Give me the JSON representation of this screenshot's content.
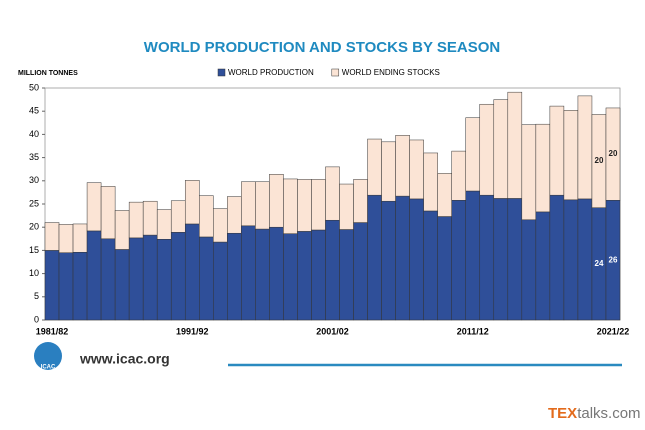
{
  "chart_data": {
    "type": "stacked-bar",
    "title": "WORLD PRODUCTION AND STOCKS BY SEASON",
    "y_label": "MILLION TONNES",
    "categories": [
      "1981/82",
      null,
      null,
      null,
      null,
      null,
      null,
      null,
      null,
      null,
      "1991/92",
      null,
      null,
      null,
      null,
      null,
      null,
      null,
      null,
      null,
      "2001/02",
      null,
      null,
      null,
      null,
      null,
      null,
      null,
      null,
      null,
      "2011/12",
      null,
      null,
      null,
      null,
      null,
      null,
      null,
      null,
      null,
      "2021/22"
    ],
    "series": [
      {
        "name": "WORLD PRODUCTION",
        "color": "#2f4f99",
        "values": [
          15,
          14.5,
          14.6,
          19.2,
          17.5,
          15.2,
          17.7,
          18.3,
          17.4,
          18.9,
          20.7,
          17.9,
          16.8,
          18.7,
          20.3,
          19.6,
          20,
          18.6,
          19.1,
          19.4,
          21.5,
          19.5,
          21,
          26.9,
          25.6,
          26.7,
          26.1,
          23.5,
          22.3,
          25.8,
          27.8,
          26.9,
          26.2,
          26.2,
          21.6,
          23.3,
          26.9,
          25.9,
          26.1,
          24.2,
          25.8
        ],
        "value_labels": [
          null,
          null,
          null,
          null,
          null,
          null,
          null,
          null,
          null,
          null,
          null,
          null,
          null,
          null,
          null,
          null,
          null,
          null,
          null,
          null,
          null,
          null,
          null,
          null,
          null,
          null,
          null,
          null,
          null,
          null,
          null,
          null,
          null,
          null,
          null,
          null,
          null,
          null,
          null,
          "24",
          "26"
        ]
      },
      {
        "name": "WORLD ENDING STOCKS",
        "color": "#fbe4d5",
        "values": [
          6,
          6.1,
          6.1,
          10.4,
          11.3,
          8.4,
          7.7,
          7.3,
          6.4,
          6.8,
          9.4,
          8.9,
          7.2,
          7.9,
          9.5,
          10.2,
          11.4,
          11.8,
          11.2,
          10.9,
          11.5,
          9.8,
          9.3,
          12.1,
          12.8,
          13.1,
          12.7,
          12.5,
          9.3,
          10.6,
          15.8,
          19.6,
          21.3,
          22.9,
          20.5,
          18.9,
          19.2,
          19.3,
          22.2,
          20.1,
          19.9
        ],
        "value_labels": [
          null,
          null,
          null,
          null,
          null,
          null,
          null,
          null,
          null,
          null,
          null,
          null,
          null,
          null,
          null,
          null,
          null,
          null,
          null,
          null,
          null,
          null,
          null,
          null,
          null,
          null,
          null,
          null,
          null,
          null,
          null,
          null,
          null,
          null,
          null,
          null,
          null,
          null,
          null,
          "20",
          "20"
        ]
      }
    ],
    "ylim": [
      0,
      50
    ],
    "yticks": [
      0,
      5,
      10,
      15,
      20,
      25,
      30,
      35,
      40,
      45,
      50
    ],
    "grid": false,
    "legend": "top"
  },
  "footer": {
    "logo": "ICAC",
    "url": "www.icac.org",
    "watermark": [
      "TEX",
      "talks.com"
    ]
  }
}
